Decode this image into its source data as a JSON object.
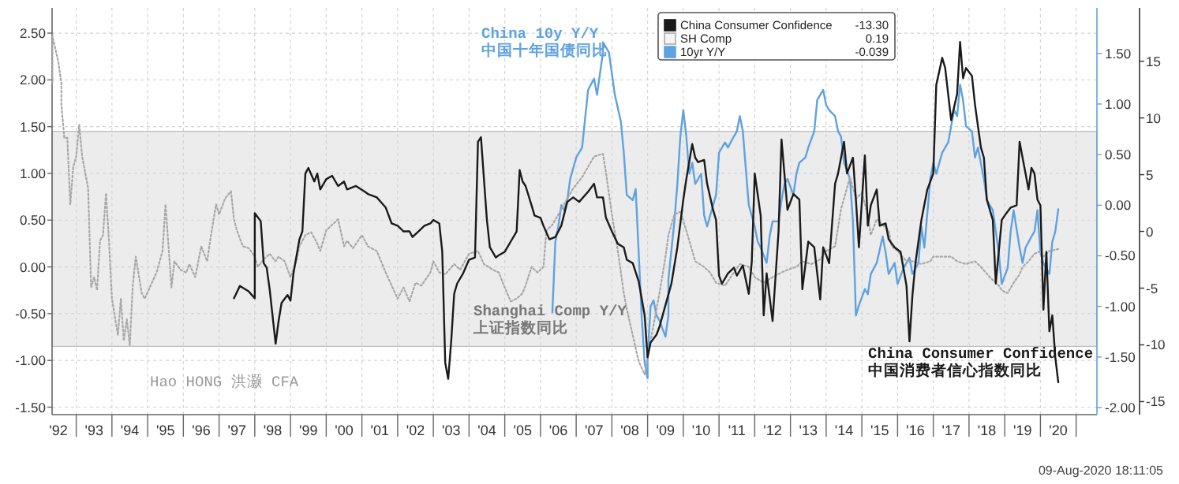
{
  "chart_data": {
    "type": "line",
    "xlim": [
      "1992-04-28",
      "2021-07-31"
    ],
    "xticks": [
      {
        "value": "1993",
        "label": null
      },
      {
        "value": "1994",
        "label": null
      },
      {
        "value": "1995",
        "label": null
      },
      {
        "value": "1996",
        "label": null
      },
      {
        "value": "1997",
        "label": null
      },
      {
        "value": "1998",
        "label": null
      },
      {
        "value": "1999",
        "label": null
      },
      {
        "value": "2000",
        "label": null
      },
      {
        "value": "2001",
        "label": null
      },
      {
        "value": "2002",
        "label": null
      },
      {
        "value": "2003",
        "label": null
      },
      {
        "value": "2004",
        "label": null
      },
      {
        "value": "2005",
        "label": null
      },
      {
        "value": "2006",
        "label": null
      },
      {
        "value": "2007",
        "label": null
      },
      {
        "value": "2008",
        "label": null
      },
      {
        "value": "2009",
        "label": null
      },
      {
        "value": "2010",
        "label": null
      },
      {
        "value": "2011",
        "label": null
      },
      {
        "value": "2012",
        "label": null
      },
      {
        "value": "2013",
        "label": null
      },
      {
        "value": "2014",
        "label": null
      },
      {
        "value": "2015",
        "label": null
      },
      {
        "value": "2016",
        "label": null
      },
      {
        "value": "2017",
        "label": null
      },
      {
        "value": "2018",
        "label": null
      },
      {
        "value": "2019",
        "label": null
      },
      {
        "value": "2020",
        "label": null
      },
      {
        "value": "2021",
        "label": null
      },
      {
        "value": "1992-07",
        "label": "'92"
      },
      {
        "value": "1993-07",
        "label": "'93"
      },
      {
        "value": "1994-07",
        "label": "'94"
      },
      {
        "value": "1995-07",
        "label": "'95"
      },
      {
        "value": "1996-07",
        "label": "'96"
      },
      {
        "value": "1997-07",
        "label": "'97"
      },
      {
        "value": "1998-07",
        "label": "'98"
      },
      {
        "value": "1999-07",
        "label": "'99"
      },
      {
        "value": "2000-07",
        "label": "'00"
      },
      {
        "value": "2001-07",
        "label": "'01"
      },
      {
        "value": "2002-07",
        "label": "'02"
      },
      {
        "value": "2003-07",
        "label": "'03"
      },
      {
        "value": "2004-07",
        "label": "'04"
      },
      {
        "value": "2005-07",
        "label": "'05"
      },
      {
        "value": "2006-07",
        "label": "'06"
      },
      {
        "value": "2007-07",
        "label": "'07"
      },
      {
        "value": "2008-07",
        "label": "'08"
      },
      {
        "value": "2009-07",
        "label": "'09"
      },
      {
        "value": "2010-07",
        "label": "'10"
      },
      {
        "value": "2011-07",
        "label": "'11"
      },
      {
        "value": "2012-07",
        "label": "'12"
      },
      {
        "value": "2013-07",
        "label": "'13"
      },
      {
        "value": "2014-07",
        "label": "'14"
      },
      {
        "value": "2015-07",
        "label": "'15"
      },
      {
        "value": "2016-07",
        "label": "'16"
      },
      {
        "value": "2017-07",
        "label": "'17"
      },
      {
        "value": "2018-07",
        "label": "'18"
      },
      {
        "value": "2019-07",
        "label": "'19"
      },
      {
        "value": "2020-07",
        "label": "'20"
      }
    ],
    "ylim": [
      -1.58,
      2.77
    ],
    "yticks": [
      {
        "value": -1.5,
        "label": "-1.50"
      },
      {
        "value": -1,
        "label": "-1.00"
      },
      {
        "value": -0.5,
        "label": "-0.50"
      },
      {
        "value": 0,
        "label": "0.00"
      },
      {
        "value": 0.5,
        "label": "0.50"
      },
      {
        "value": 1,
        "label": "1.00"
      },
      {
        "value": 1.5,
        "label": "1.50"
      },
      {
        "value": 2,
        "label": "2.00"
      },
      {
        "value": 2.5,
        "label": "2.50"
      }
    ],
    "y2lim": [
      -2.07,
      1.95
    ],
    "y2ticks": [
      {
        "value": -2,
        "label": "-2.00"
      },
      {
        "value": -1.5,
        "label": "-1.50"
      },
      {
        "value": -1,
        "label": "-1.00"
      },
      {
        "value": -0.5,
        "label": "-0.50"
      },
      {
        "value": 0,
        "label": "0.00"
      },
      {
        "value": 0.5,
        "label": "0.50"
      },
      {
        "value": 1,
        "label": "1.00"
      },
      {
        "value": 1.5,
        "label": "1.50"
      }
    ],
    "y3lim": [
      -16.15,
      19.7
    ],
    "y3ticks": [
      -15,
      -10,
      -5,
      0,
      5,
      10,
      15
    ],
    "grid": true,
    "legend": "top right",
    "marker": "none",
    "bands": [
      {
        "axis": "y",
        "from": -0.85,
        "to": 1.45,
        "color": "#ececec"
      }
    ],
    "annotations": [
      "China 10y Y/Y\n中国十年国债同比",
      "Shanghai Comp Y/Y\n上证指数同比",
      "China Consumer Confidence\n中国消费者信心指数同比",
      "Hao HONG 洪灏 CFA",
      "09-Aug-2020 18:11:05",
      "-13.30",
      "0.19",
      "-0.039"
    ],
    "series": [
      {
        "name": "China Consumer Confidence",
        "color": "#1a1a1a",
        "axis": "y3",
        "line_style": "solid",
        "x": [
          "1997-06",
          "1997-08",
          "1997-11",
          "1998-01",
          "1998-01",
          "1998-03",
          "1998-04",
          "1998-05",
          "1998-06",
          "1998-08",
          "1998-09",
          "1998-10",
          "1998-12",
          "1999-01",
          "1999-02",
          "1999-04",
          "1999-05",
          "1999-06",
          "1999-07",
          "1999-09",
          "1999-10",
          "1999-11",
          "2000-01",
          "2000-03",
          "2000-05",
          "2000-07",
          "2000-08",
          "2000-11",
          "2001-02",
          "2001-03",
          "2001-06",
          "2001-09",
          "2001-11",
          "2002-01",
          "2002-03",
          "2002-05",
          "2002-06",
          "2002-08",
          "2002-10",
          "2002-12",
          "2003-01",
          "2003-03",
          "2003-04",
          "2003-05",
          "2003-06",
          "2003-07",
          "2003-08",
          "2003-09",
          "2003-11",
          "2004-01",
          "2004-03",
          "2004-04",
          "2004-05",
          "2004-07",
          "2004-08",
          "2004-10",
          "2004-11",
          "2005-01",
          "2005-03",
          "2005-05",
          "2005-06",
          "2005-07",
          "2005-08",
          "2005-10",
          "2005-11",
          "2006-01",
          "2006-02",
          "2006-04",
          "2006-06",
          "2006-08",
          "2006-10",
          "2006-12",
          "2007-02",
          "2007-05",
          "2007-07",
          "2007-08",
          "2007-10",
          "2007-11",
          "2008-01",
          "2008-03",
          "2008-05",
          "2008-06",
          "2008-08",
          "2008-10",
          "2008-12",
          "2009-01",
          "2009-02",
          "2009-04",
          "2009-05",
          "2009-07",
          "2009-09",
          "2009-11",
          "2010-01",
          "2010-02",
          "2010-04",
          "2010-05",
          "2010-06",
          "2010-08",
          "2010-09",
          "2010-11",
          "2010-12",
          "2011-01",
          "2011-02",
          "2011-04",
          "2011-06",
          "2011-07",
          "2011-09",
          "2011-11",
          "2011-12",
          "2012-01",
          "2012-03",
          "2012-04",
          "2012-05",
          "2012-07",
          "2012-09",
          "2012-10",
          "2012-12",
          "2013-02",
          "2013-04",
          "2013-05",
          "2013-07",
          "2013-09",
          "2013-11",
          "2013-12",
          "2014-02",
          "2014-04",
          "2014-05",
          "2014-07",
          "2014-08",
          "2014-10",
          "2014-11",
          "2014-12",
          "2015-02",
          "2015-03",
          "2015-04",
          "2015-06",
          "2015-07",
          "2015-09",
          "2015-10",
          "2015-12",
          "2016-02",
          "2016-04",
          "2016-05",
          "2016-06",
          "2016-07",
          "2016-09",
          "2016-11",
          "2017-01",
          "2017-02",
          "2017-04",
          "2017-05",
          "2017-07",
          "2017-09",
          "2017-10",
          "2017-11",
          "2017-12",
          "2018-02",
          "2018-03",
          "2018-05",
          "2018-06",
          "2018-07",
          "2018-09",
          "2018-10",
          "2018-12",
          "2019-01",
          "2019-03",
          "2019-05",
          "2019-06",
          "2019-07",
          "2019-09",
          "2019-10",
          "2019-11",
          "2019-12",
          "2020-01",
          "2020-02",
          "2020-03",
          "2020-04",
          "2020-05",
          "2020-06",
          "2020-07"
        ],
        "values": [
          -5.9,
          -4.8,
          -5.3,
          -5.9,
          1.6,
          0.9,
          -2.8,
          -3.2,
          -5.1,
          -9.9,
          -7.9,
          -6.3,
          -5.6,
          -6.1,
          -3.7,
          -0.7,
          0.0,
          5.1,
          5.6,
          4.4,
          5.1,
          3.7,
          4.6,
          4.9,
          4.0,
          4.4,
          3.7,
          4.0,
          3.5,
          3.3,
          3.0,
          2.1,
          0.7,
          0.5,
          0.0,
          0.0,
          -0.5,
          0.0,
          0.5,
          0.7,
          1.0,
          0.7,
          -1.8,
          -11.6,
          -13.0,
          -9.7,
          -5.5,
          -4.6,
          -3.7,
          -2.5,
          -2.3,
          7.9,
          8.3,
          1.0,
          -1.4,
          -2.3,
          -2.1,
          -1.8,
          -0.9,
          0.0,
          5.4,
          4.4,
          4.0,
          2.3,
          1.4,
          1.2,
          0.5,
          -0.7,
          -0.5,
          0.5,
          2.6,
          3.0,
          2.6,
          3.5,
          4.2,
          3.0,
          3.0,
          1.2,
          0.0,
          -1.1,
          -1.4,
          -2.5,
          -2.8,
          -4.4,
          -7.4,
          -11.1,
          -9.8,
          -9.1,
          -8.4,
          -6.5,
          -4.6,
          -1.4,
          2.8,
          4.6,
          7.7,
          6.5,
          6.1,
          6.3,
          4.2,
          1.9,
          1.0,
          -3.9,
          -4.6,
          -3.7,
          -3.2,
          -3.9,
          -3.0,
          -5.5,
          -2.7,
          5.1,
          1.4,
          -7.4,
          -3.7,
          -7.9,
          0.0,
          8.1,
          1.9,
          3.3,
          2.8,
          -5.1,
          -0.9,
          -1.4,
          -6.0,
          -1.4,
          -2.8,
          4.2,
          5.1,
          7.9,
          5.1,
          6.5,
          2.8,
          -1.4,
          6.7,
          0.5,
          2.3,
          3.7,
          0.5,
          0.7,
          -0.7,
          -1.4,
          -1.8,
          -4.8,
          -9.7,
          -5.6,
          -2.8,
          1.0,
          3.7,
          5.1,
          12.9,
          15.3,
          14.4,
          9.8,
          12.1,
          16.7,
          13.5,
          14.4,
          13.7,
          11.2,
          7.4,
          6.5,
          2.8,
          1.0,
          -4.6,
          1.0,
          1.4,
          2.1,
          2.3,
          7.9,
          6.5,
          3.7,
          5.6,
          5.1,
          2.8,
          2.3,
          -6.9,
          -1.8,
          -8.8,
          -7.4,
          -11.1,
          -13.3
        ]
      },
      {
        "name": "SH Comp",
        "color": "#a8a8a8",
        "axis": "y",
        "line_style": "dotted",
        "x": [
          "1992-05",
          "1992-05",
          "1992-07",
          "1992-08",
          "1992-08",
          "1992-09",
          "1992-10",
          "1992-11",
          "1992-12",
          "1993-01",
          "1993-02",
          "1993-03",
          "1993-04",
          "1993-05",
          "1993-06",
          "1993-07",
          "1993-08",
          "1993-09",
          "1993-10",
          "1993-11",
          "1993-12",
          "1994-01",
          "1994-03",
          "1994-04",
          "1994-05",
          "1994-06",
          "1994-07",
          "1994-08",
          "1994-09",
          "1994-11",
          "1994-12",
          "1995-02",
          "1995-04",
          "1995-06",
          "1995-07",
          "1995-09",
          "1995-10",
          "1995-12",
          "1996-02",
          "1996-03",
          "1996-05",
          "1996-07",
          "1996-09",
          "1996-10",
          "1996-12",
          "1997-01",
          "1997-03",
          "1997-05",
          "1997-06",
          "1997-07",
          "1997-09",
          "1997-11",
          "1998-01",
          "1998-02",
          "1998-04",
          "1998-06",
          "1998-08",
          "1998-09",
          "1998-11",
          "1999-01",
          "1999-03",
          "1999-04",
          "1999-06",
          "1999-08",
          "1999-10",
          "1999-11",
          "2000-01",
          "2000-03",
          "2000-05",
          "2000-07",
          "2000-08",
          "2000-10",
          "2001-01",
          "2001-03",
          "2001-06",
          "2001-09",
          "2001-11",
          "2002-01",
          "2002-03",
          "2002-05",
          "2002-07",
          "2002-09",
          "2002-12",
          "2003-01",
          "2003-03",
          "2003-05",
          "2003-08",
          "2003-10",
          "2004-01",
          "2004-04",
          "2004-06",
          "2004-09",
          "2004-11",
          "2005-01",
          "2005-03",
          "2005-05",
          "2005-07",
          "2005-08",
          "2005-10",
          "2005-12",
          "2006-02",
          "2006-03",
          "2006-05",
          "2006-07",
          "2006-10",
          "2006-12",
          "2007-03",
          "2007-07",
          "2007-10",
          "2007-11",
          "2008-01",
          "2008-03",
          "2008-05",
          "2008-06",
          "2008-08",
          "2008-10",
          "2008-12",
          "2009-01",
          "2009-03",
          "2009-05",
          "2009-07",
          "2009-08",
          "2009-10",
          "2009-12",
          "2010-02",
          "2010-04",
          "2010-05",
          "2010-08",
          "2010-10",
          "2010-12",
          "2011-03",
          "2011-06",
          "2011-08",
          "2011-11",
          "2012-01",
          "2012-04",
          "2012-07",
          "2012-10",
          "2012-12",
          "2013-03",
          "2013-05",
          "2013-08",
          "2013-11",
          "2014-01",
          "2014-04",
          "2014-06",
          "2014-07",
          "2014-09",
          "2014-11",
          "2015-01",
          "2015-03",
          "2015-04",
          "2015-06",
          "2015-08",
          "2015-10",
          "2015-11",
          "2016-01",
          "2016-04",
          "2016-06",
          "2016-09",
          "2016-12",
          "2017-01",
          "2017-04",
          "2017-07",
          "2017-09",
          "2017-12",
          "2018-03",
          "2018-05",
          "2018-08",
          "2018-11",
          "2018-12",
          "2019-02",
          "2019-04",
          "2019-06",
          "2019-07",
          "2019-09",
          "2019-11",
          "2020-01",
          "2020-02",
          "2020-04",
          "2020-07"
        ],
        "values": [
          1.97,
          2.47,
          2.19,
          1.97,
          1.74,
          1.38,
          1.38,
          0.67,
          1.07,
          1.18,
          1.52,
          1.18,
          1.01,
          0.84,
          -0.22,
          -0.11,
          -0.25,
          0.28,
          0.34,
          0.79,
          0.28,
          -0.34,
          -0.73,
          -0.34,
          -0.79,
          -0.56,
          -0.84,
          -0.2,
          0.11,
          -0.28,
          -0.34,
          -0.2,
          -0.06,
          0.17,
          0.67,
          -0.22,
          0.06,
          -0.03,
          -0.06,
          0.03,
          -0.11,
          0.22,
          0.06,
          0.28,
          0.67,
          0.56,
          0.73,
          0.81,
          0.51,
          0.39,
          0.22,
          0.2,
          0.11,
          0.0,
          0.08,
          0.14,
          0.06,
          0.11,
          0.06,
          -0.11,
          0.06,
          0.22,
          0.34,
          0.37,
          0.25,
          0.17,
          0.39,
          0.45,
          0.51,
          0.22,
          0.28,
          0.2,
          0.34,
          0.22,
          0.17,
          -0.06,
          -0.2,
          -0.34,
          -0.22,
          -0.37,
          -0.17,
          -0.2,
          -0.06,
          0.06,
          -0.06,
          -0.08,
          0.03,
          -0.03,
          0.14,
          0.17,
          0.03,
          -0.03,
          -0.06,
          -0.22,
          -0.37,
          -0.34,
          -0.28,
          -0.2,
          0.0,
          -0.06,
          0.0,
          0.39,
          0.45,
          0.56,
          0.73,
          0.84,
          0.96,
          1.18,
          1.21,
          1.01,
          0.56,
          0.17,
          -0.28,
          -0.45,
          -0.73,
          -1.01,
          -1.15,
          -0.96,
          -0.62,
          -0.28,
          0.11,
          0.34,
          0.56,
          0.59,
          0.39,
          0.17,
          0.06,
          0.0,
          -0.06,
          -0.17,
          -0.2,
          -0.06,
          0.03,
          0.0,
          -0.11,
          -0.17,
          -0.11,
          -0.06,
          -0.03,
          0.0,
          0.06,
          0.03,
          0.08,
          0.17,
          0.22,
          0.62,
          0.73,
          0.96,
          0.73,
          0.79,
          0.56,
          0.34,
          0.51,
          0.45,
          0.39,
          0.22,
          0.17,
          0.06,
          0.06,
          0.03,
          0.06,
          0.11,
          0.11,
          0.11,
          0.06,
          0.03,
          0.06,
          0.0,
          -0.11,
          -0.2,
          -0.25,
          -0.28,
          -0.17,
          -0.08,
          0.0,
          0.06,
          0.14,
          0.17,
          0.11,
          0.17,
          0.19
        ]
      },
      {
        "name": "10yr Y/Y",
        "color": "#5fa2e0",
        "axis": "y2",
        "line_style": "solid",
        "x": [
          "2006-05",
          "2006-06",
          "2006-07",
          "2006-08",
          "2006-09",
          "2006-10",
          "2006-11",
          "2007-01",
          "2007-03",
          "2007-05",
          "2007-07",
          "2007-08",
          "2007-10",
          "2007-10",
          "2007-12",
          "2008-01",
          "2008-02",
          "2008-04",
          "2008-05",
          "2008-06",
          "2008-08",
          "2008-09",
          "2008-10",
          "2008-11",
          "2008-12",
          "2009-01",
          "2009-01",
          "2009-02",
          "2009-03",
          "2009-04",
          "2009-05",
          "2009-07",
          "2009-08",
          "2009-08",
          "2009-10",
          "2009-11",
          "2009-12",
          "2010-01",
          "2010-02",
          "2010-03",
          "2010-04",
          "2010-05",
          "2010-07",
          "2010-08",
          "2010-09",
          "2010-11",
          "2010-12",
          "2011-01",
          "2011-03",
          "2011-04",
          "2011-06",
          "2011-07",
          "2011-08",
          "2011-09",
          "2011-10",
          "2011-11",
          "2012-01",
          "2012-02",
          "2012-03",
          "2012-05",
          "2012-06",
          "2012-07",
          "2012-09",
          "2012-10",
          "2012-11",
          "2012-12",
          "2013-02",
          "2013-03",
          "2013-04",
          "2013-06",
          "2013-07",
          "2013-09",
          "2013-10",
          "2013-12",
          "2014-01",
          "2014-02",
          "2014-04",
          "2014-05",
          "2014-06",
          "2014-07",
          "2014-09",
          "2014-10",
          "2014-11",
          "2014-12",
          "2015-02",
          "2015-03",
          "2015-04",
          "2015-06",
          "2015-08",
          "2015-09",
          "2015-10",
          "2015-12",
          "2016-01",
          "2016-03",
          "2016-05",
          "2016-06",
          "2016-08",
          "2016-09",
          "2016-10",
          "2016-12",
          "2017-01",
          "2017-02",
          "2017-04",
          "2017-05",
          "2017-06",
          "2017-08",
          "2017-09",
          "2017-10",
          "2017-11",
          "2017-12",
          "2018-02",
          "2018-03",
          "2018-04",
          "2018-06",
          "2018-07",
          "2018-09",
          "2018-10",
          "2018-11",
          "2018-12",
          "2019-02",
          "2019-03",
          "2019-04",
          "2019-06",
          "2019-07",
          "2019-08",
          "2019-10",
          "2019-11",
          "2019-12",
          "2020-01",
          "2020-02",
          "2020-04",
          "2020-05",
          "2020-06",
          "2020-07"
        ],
        "values": [
          -1.06,
          -0.36,
          -0.21,
          0.0,
          -0.05,
          0.05,
          0.26,
          0.47,
          0.57,
          1.14,
          1.25,
          1.09,
          1.51,
          1.61,
          1.51,
          1.3,
          1.09,
          0.83,
          0.52,
          0.1,
          0.05,
          0.16,
          -0.47,
          -1.09,
          -1.56,
          -1.71,
          -1.51,
          -1.0,
          -0.94,
          -1.09,
          -1.14,
          -1.3,
          -1.09,
          -0.73,
          -0.16,
          0.21,
          0.68,
          0.94,
          0.68,
          0.31,
          0.42,
          0.21,
          0.31,
          -0.1,
          -0.21,
          0.0,
          0.1,
          0.52,
          0.62,
          0.57,
          0.68,
          0.73,
          0.88,
          0.73,
          0.36,
          0.0,
          -0.21,
          -0.36,
          -0.42,
          -0.57,
          -0.31,
          -0.16,
          -0.16,
          0.05,
          0.21,
          0.26,
          0.1,
          0.31,
          0.42,
          0.47,
          0.57,
          0.73,
          1.04,
          1.14,
          0.99,
          0.94,
          0.88,
          0.73,
          0.68,
          0.42,
          0.26,
          -0.16,
          -1.09,
          -0.99,
          -0.83,
          -0.88,
          -0.68,
          -0.57,
          -0.31,
          -0.47,
          -0.68,
          -0.57,
          -0.78,
          -0.62,
          -0.52,
          -0.68,
          -0.57,
          -0.21,
          -0.42,
          0.26,
          0.42,
          0.31,
          0.52,
          0.57,
          0.62,
          0.94,
          0.88,
          1.19,
          1.04,
          0.78,
          0.73,
          0.47,
          0.57,
          0.26,
          0.05,
          -0.05,
          -0.26,
          -0.47,
          -0.78,
          -0.62,
          -0.26,
          -0.05,
          -0.42,
          -0.57,
          -0.42,
          -0.31,
          -0.26,
          -0.05,
          -0.47,
          -0.57,
          -0.68,
          -0.36,
          -0.26,
          -0.04
        ]
      }
    ]
  }
}
